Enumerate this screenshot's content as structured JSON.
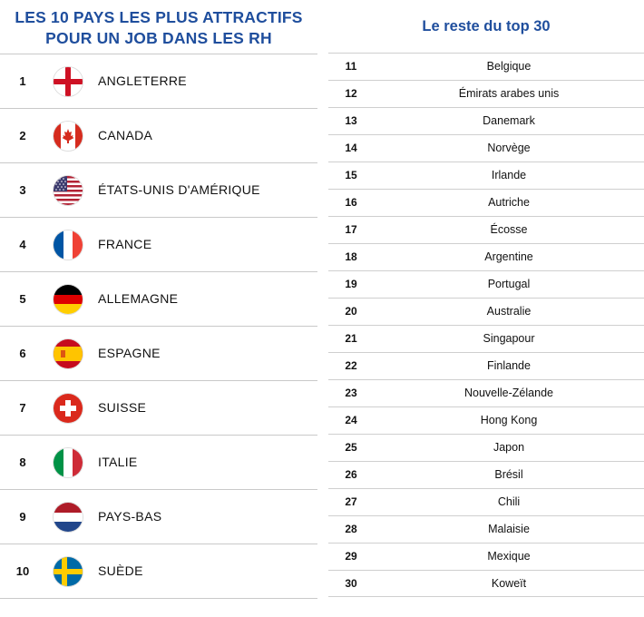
{
  "left": {
    "title_line1": "LES 10 PAYS LES PLUS ATTRACTIFS",
    "title_line2": "POUR UN JOB DANS LES RH",
    "items": [
      {
        "rank": "1",
        "country": "ANGLETERRE",
        "flag": "england-flag-icon"
      },
      {
        "rank": "2",
        "country": "CANADA",
        "flag": "canada-flag-icon"
      },
      {
        "rank": "3",
        "country": "ÉTATS-UNIS D'AMÉRIQUE",
        "flag": "usa-flag-icon"
      },
      {
        "rank": "4",
        "country": "FRANCE",
        "flag": "france-flag-icon"
      },
      {
        "rank": "5",
        "country": "ALLEMAGNE",
        "flag": "germany-flag-icon"
      },
      {
        "rank": "6",
        "country": "ESPAGNE",
        "flag": "spain-flag-icon"
      },
      {
        "rank": "7",
        "country": "SUISSE",
        "flag": "switzerland-flag-icon"
      },
      {
        "rank": "8",
        "country": "ITALIE",
        "flag": "italy-flag-icon"
      },
      {
        "rank": "9",
        "country": "PAYS-BAS",
        "flag": "netherlands-flag-icon"
      },
      {
        "rank": "10",
        "country": "SUÈDE",
        "flag": "sweden-flag-icon"
      }
    ]
  },
  "right": {
    "title": "Le reste du top 30",
    "items": [
      {
        "rank": "11",
        "country": "Belgique"
      },
      {
        "rank": "12",
        "country": "Émirats arabes unis"
      },
      {
        "rank": "13",
        "country": "Danemark"
      },
      {
        "rank": "14",
        "country": "Norvège"
      },
      {
        "rank": "15",
        "country": "Irlande"
      },
      {
        "rank": "16",
        "country": "Autriche"
      },
      {
        "rank": "17",
        "country": "Écosse"
      },
      {
        "rank": "18",
        "country": "Argentine"
      },
      {
        "rank": "19",
        "country": "Portugal"
      },
      {
        "rank": "20",
        "country": "Australie"
      },
      {
        "rank": "21",
        "country": "Singapour"
      },
      {
        "rank": "22",
        "country": "Finlande"
      },
      {
        "rank": "23",
        "country": "Nouvelle-Zélande"
      },
      {
        "rank": "24",
        "country": "Hong Kong"
      },
      {
        "rank": "25",
        "country": "Japon"
      },
      {
        "rank": "26",
        "country": "Brésil"
      },
      {
        "rank": "27",
        "country": "Chili"
      },
      {
        "rank": "28",
        "country": "Malaisie"
      },
      {
        "rank": "29",
        "country": "Mexique"
      },
      {
        "rank": "30",
        "country": "Koweït"
      }
    ]
  },
  "colors": {
    "title": "#1f4e9d",
    "rule": "#c9c9c9"
  }
}
